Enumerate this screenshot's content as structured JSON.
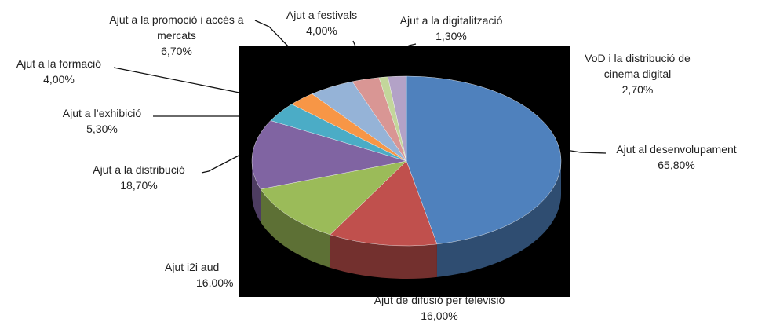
{
  "chart_data": {
    "type": "pie",
    "categories": [
      "Ajut al desenvolupament",
      "Ajut de difusió per televisió",
      "Ajut  i2i aud",
      "Ajut a la distribució",
      "Ajut a l’exhibició",
      "Ajut a la formació",
      "Ajut a la promoció i accés a mercats",
      "Ajut a festivals",
      "Ajut a la digitalització",
      "VoD i la distribució de cinema digital"
    ],
    "values": [
      65.8,
      16.0,
      16.0,
      18.7,
      5.3,
      4.0,
      6.7,
      4.0,
      1.3,
      2.7
    ],
    "value_labels": [
      "65,80%",
      "16,00%",
      "16,00%",
      "18,70%",
      "5,30%",
      "4,00%",
      "6,70%",
      "4,00%",
      "1,30%",
      "2,70%"
    ],
    "colors": [
      "#4f81bd",
      "#c0504d",
      "#9bbb59",
      "#8064a2",
      "#4bacc6",
      "#f79646",
      "#95b3d7",
      "#d99694",
      "#c3d69b",
      "#b3a2c7"
    ]
  }
}
